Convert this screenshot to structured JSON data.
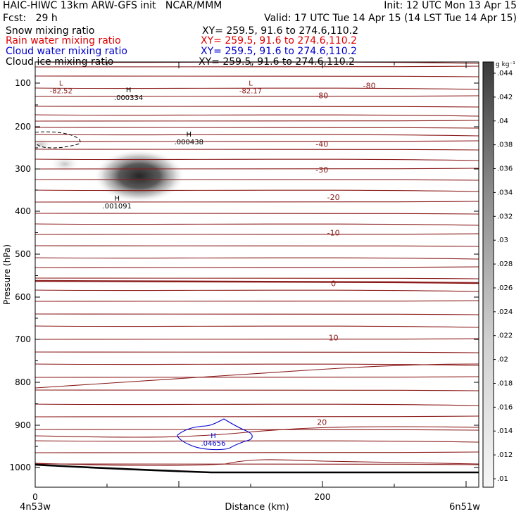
{
  "header": {
    "line1_left": "HAIC-HIWC 13km ARW-GFS init   NCAR/MMM",
    "line1_right": "Init: 12 UTC Mon 13 Apr 15",
    "line2_left": "Fcst:   29 h",
    "line2_right": "Valid: 17 UTC Tue 14 Apr 15 (14 LST Tue 14 Apr 15)",
    "fields": [
      {
        "label": "Snow mixing ratio",
        "xy": "XY= 259.5, 91.6 to 274.6,110.2",
        "color": "#000000"
      },
      {
        "label": "Rain water mixing ratio",
        "xy": "XY= 259.5, 91.6 to 274.6,110.2",
        "color": "#e00000"
      },
      {
        "label": "Cloud water mixing ratio",
        "xy": "XY= 259.5, 91.6 to 274.6,110.2",
        "color": "#0000cc"
      },
      {
        "label": "Cloud ice mixing ratio",
        "xy": "XY= 259.5, 91.6 to 274.6,110.2",
        "color": "#000000"
      }
    ]
  },
  "chart_data": {
    "type": "cross-section",
    "ylabel": "Pressure (hPa)",
    "xlabel": "Distance (km)",
    "x_left_label": "4n53w",
    "x_right_label": "6n51w",
    "xlim": [
      0,
      300
    ],
    "ylim": [
      1050,
      63
    ],
    "x_ticks": [
      0,
      200
    ],
    "y_ticks": [
      100,
      200,
      300,
      400,
      500,
      600,
      700,
      800,
      900,
      1000
    ],
    "colorbar": {
      "unit": "g kg⁻¹",
      "labels": [
        ".01",
        ".012",
        ".014",
        ".016",
        ".018",
        ".02",
        ".022",
        ".024",
        ".026",
        ".028",
        ".03",
        ".032",
        ".034",
        ".036",
        ".038",
        ".04",
        ".042",
        ".044"
      ]
    },
    "temperature_contour_labels": [
      {
        "text": "-80",
        "x": 215,
        "p": 106
      },
      {
        "text": "-80",
        "x": 182,
        "p": 128
      },
      {
        "text": "-40",
        "x": 182,
        "p": 241
      },
      {
        "text": "-30",
        "x": 182,
        "p": 302
      },
      {
        "text": "-20",
        "x": 190,
        "p": 367
      },
      {
        "text": "-10",
        "x": 190,
        "p": 450
      },
      {
        "text": "0",
        "x": 190,
        "p": 568
      },
      {
        "text": "10",
        "x": 190,
        "p": 696
      },
      {
        "text": "20",
        "x": 182,
        "p": 893
      }
    ],
    "extrema": [
      {
        "kind": "L",
        "value": "-82.52",
        "x": 18,
        "p": 106,
        "color": "#8b1a1a"
      },
      {
        "kind": "L",
        "value": "-82.17",
        "x": 150,
        "p": 106,
        "color": "#8b1a1a"
      },
      {
        "kind": "H",
        "value": ".000334",
        "x": 65,
        "p": 121,
        "color": "#000000"
      },
      {
        "kind": "H",
        "value": ".000438",
        "x": 107,
        "p": 223,
        "color": "#000000"
      },
      {
        "kind": "H",
        "value": ".001091",
        "x": 57,
        "p": 375,
        "color": "#000000"
      },
      {
        "kind": "H",
        "value": ".04656",
        "x": 124,
        "p": 930,
        "color": "#0000cc"
      }
    ]
  }
}
